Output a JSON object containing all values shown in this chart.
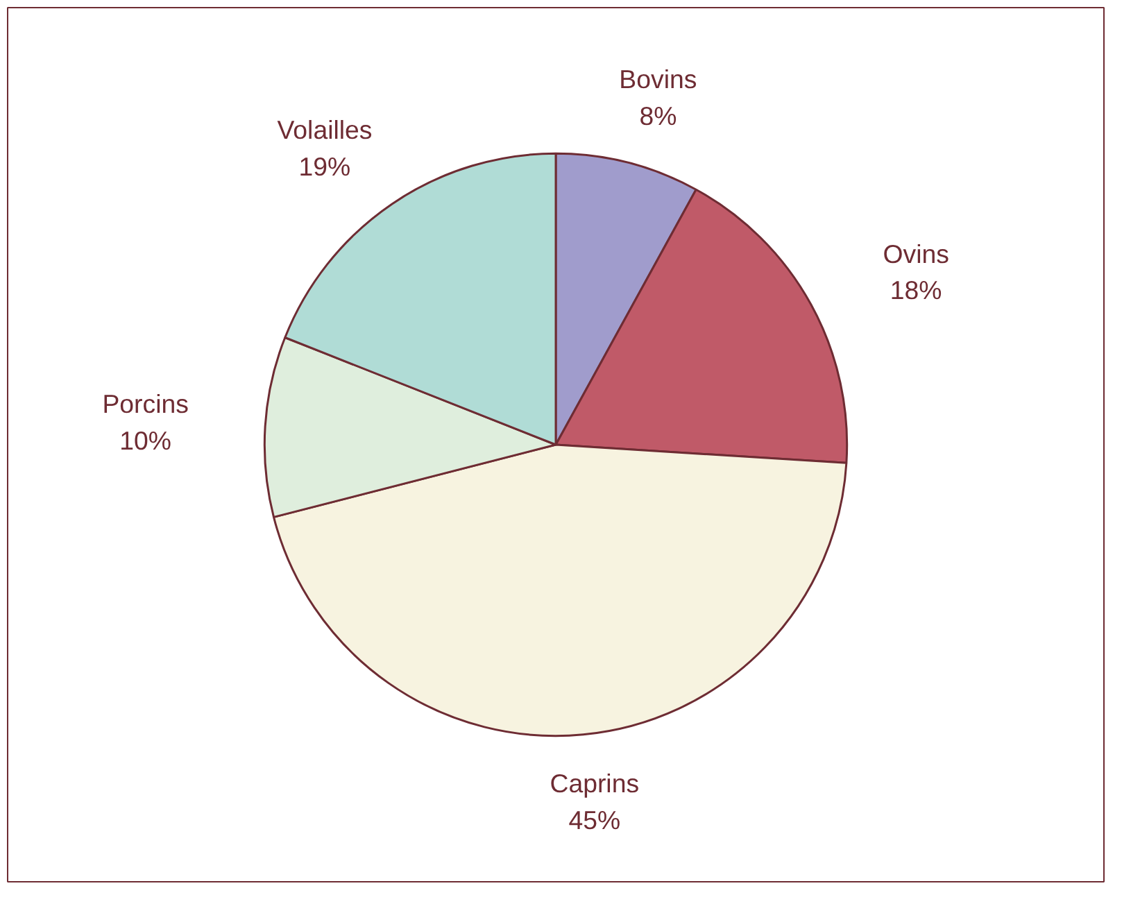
{
  "chart_data": {
    "type": "pie",
    "categories": [
      "Bovins",
      "Ovins",
      "Caprins",
      "Porcins",
      "Volailles"
    ],
    "values": [
      8,
      18,
      45,
      10,
      19
    ],
    "colors": [
      "#a09ccc",
      "#c05a68",
      "#f7f3e0",
      "#dfeedd",
      "#b0dcd6"
    ],
    "value_labels": [
      "8%",
      "18%",
      "45%",
      "10%",
      "19%"
    ],
    "legend": false
  }
}
